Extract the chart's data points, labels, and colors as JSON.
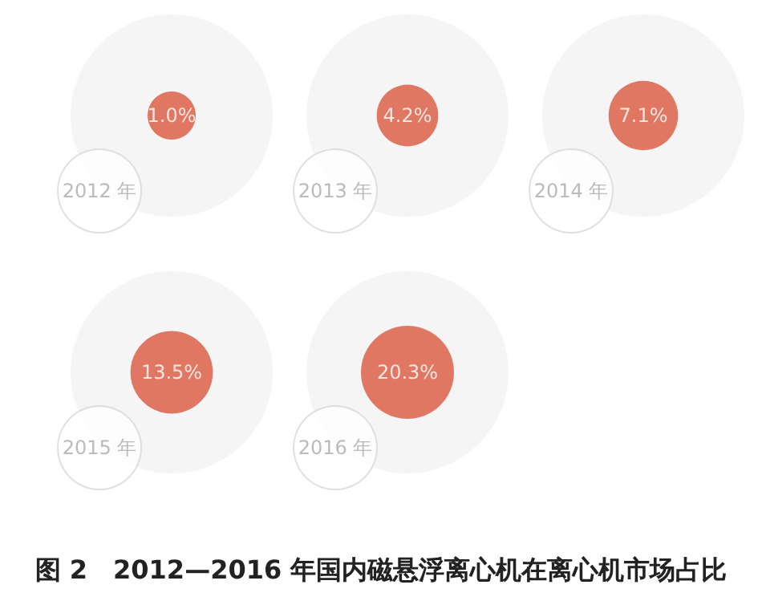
{
  "chart_data": {
    "type": "other",
    "title": "图 2　2012—2016 年国内磁悬浮离心机在离心机市场占比",
    "categories": [
      "2012 年",
      "2013 年",
      "2014 年",
      "2015 年",
      "2016 年"
    ],
    "values": [
      1.0,
      4.2,
      7.1,
      13.5,
      20.3
    ],
    "value_labels": [
      "1.0%",
      "4.2%",
      "7.1%",
      "13.5%",
      "20.3%"
    ],
    "color": "#d9583f"
  }
}
